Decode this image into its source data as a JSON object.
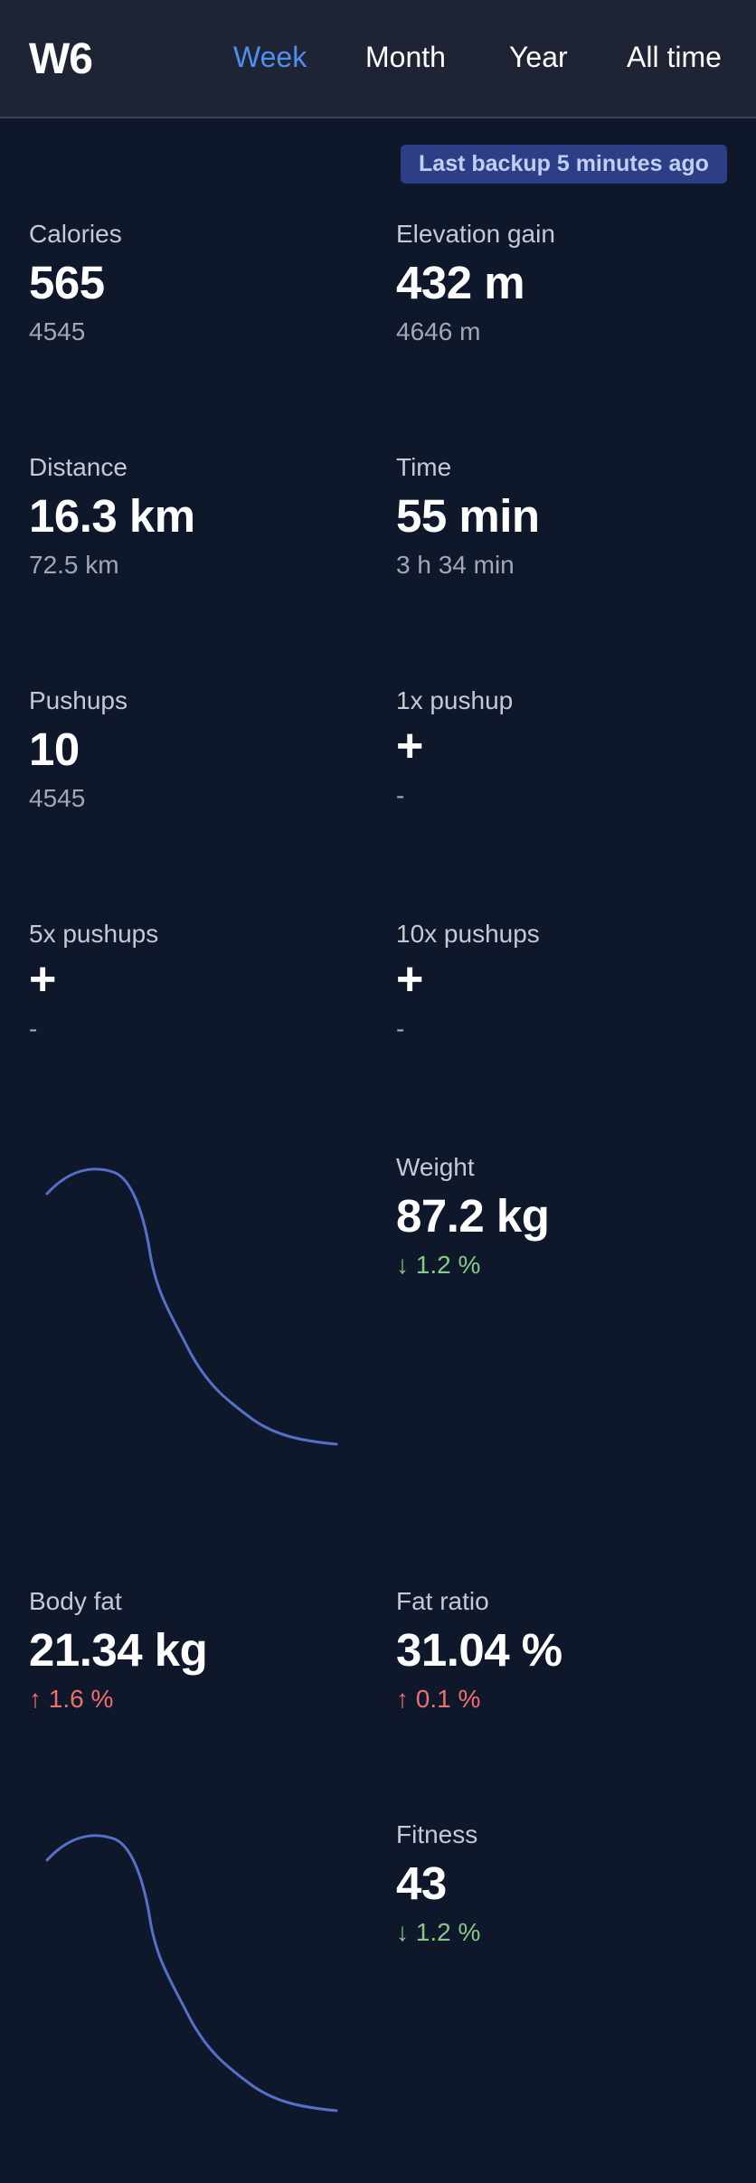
{
  "header": {
    "brand": "W6",
    "nav": [
      "Week",
      "Month",
      "Year",
      "All time"
    ]
  },
  "backup": {
    "text": "Last backup 5 minutes ago"
  },
  "stats": {
    "calories": {
      "label": "Calories",
      "value": "565",
      "sub": "4545"
    },
    "elevation": {
      "label": "Elevation gain",
      "value": "432 m",
      "sub": "4646 m"
    },
    "distance": {
      "label": "Distance",
      "value": "16.3 km",
      "sub": "72.5 km"
    },
    "time": {
      "label": "Time",
      "value": "55 min",
      "sub": "3 h 34 min"
    },
    "pushups": {
      "label": "Pushups",
      "value": "10",
      "sub": "4545"
    },
    "pushup1x": {
      "label": "1x pushup",
      "value": "+",
      "sub": "-"
    },
    "pushup5x": {
      "label": "5x pushups",
      "value": "+",
      "sub": "-"
    },
    "pushup10x": {
      "label": "10x pushups",
      "value": "+",
      "sub": "-"
    },
    "weight": {
      "label": "Weight",
      "value": "87.2 kg",
      "sub": "↓ 1.2 %"
    },
    "bodyfat": {
      "label": "Body fat",
      "value": "21.34 kg",
      "sub": "↑ 1.6 %"
    },
    "fatratio": {
      "label": "Fat ratio",
      "value": "31.04 %",
      "sub": "↑ 0.1 %"
    },
    "fitness": {
      "label": "Fitness",
      "value": "43",
      "sub": "↓ 1.2 %"
    }
  },
  "colors": {
    "background": "#0f172a",
    "header": "#1e2433",
    "accent": "#4f8ff0",
    "sparkline": "#5470c9",
    "positive": "#86c987",
    "negative": "#ef6f6f"
  }
}
